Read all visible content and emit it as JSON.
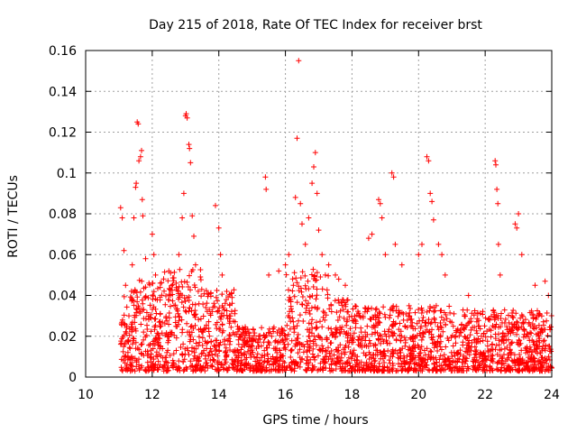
{
  "chart_data": {
    "type": "scatter",
    "title": "Day 215 of 2018, Rate Of TEC Index for receiver brst",
    "xlabel": "GPS time / hours",
    "ylabel": "ROTI / TECUs",
    "xlim": [
      10,
      24
    ],
    "ylim": [
      0,
      0.16
    ],
    "xticks": [
      10,
      12,
      14,
      16,
      18,
      20,
      22,
      24
    ],
    "xtick_labels": [
      "10",
      "12",
      "14",
      "16",
      "18",
      "20",
      "22",
      "24"
    ],
    "yticks": [
      0,
      0.02,
      0.04,
      0.06,
      0.08,
      0.1,
      0.12,
      0.14,
      0.16
    ],
    "ytick_labels": [
      "0",
      "0.02",
      "0.04",
      "0.06",
      "0.08",
      "0.1",
      "0.12",
      "0.14",
      "0.16"
    ],
    "grid": true,
    "marker": "+",
    "color": "#ff0000",
    "series": [
      {
        "name": "ROTI",
        "points": [
          [
            11.05,
            0.083
          ],
          [
            11.1,
            0.078
          ],
          [
            11.15,
            0.062
          ],
          [
            11.2,
            0.045
          ],
          [
            11.3,
            0.03
          ],
          [
            11.4,
            0.055
          ],
          [
            11.45,
            0.078
          ],
          [
            11.55,
            0.125
          ],
          [
            11.58,
            0.124
          ],
          [
            11.5,
            0.093
          ],
          [
            11.52,
            0.095
          ],
          [
            11.6,
            0.106
          ],
          [
            11.65,
            0.108
          ],
          [
            11.68,
            0.111
          ],
          [
            11.7,
            0.087
          ],
          [
            11.72,
            0.079
          ],
          [
            11.8,
            0.058
          ],
          [
            11.9,
            0.046
          ],
          [
            12.0,
            0.07
          ],
          [
            12.05,
            0.06
          ],
          [
            12.1,
            0.05
          ],
          [
            12.5,
            0.052
          ],
          [
            12.55,
            0.051
          ],
          [
            12.8,
            0.06
          ],
          [
            12.9,
            0.078
          ],
          [
            12.95,
            0.09
          ],
          [
            13.0,
            0.128
          ],
          [
            13.02,
            0.129
          ],
          [
            13.05,
            0.127
          ],
          [
            13.1,
            0.114
          ],
          [
            13.12,
            0.112
          ],
          [
            13.15,
            0.105
          ],
          [
            13.2,
            0.079
          ],
          [
            13.25,
            0.069
          ],
          [
            13.3,
            0.055
          ],
          [
            13.9,
            0.084
          ],
          [
            14.0,
            0.073
          ],
          [
            14.05,
            0.06
          ],
          [
            14.1,
            0.05
          ],
          [
            15.4,
            0.098
          ],
          [
            15.42,
            0.092
          ],
          [
            15.5,
            0.05
          ],
          [
            15.8,
            0.052
          ],
          [
            16.0,
            0.055
          ],
          [
            16.1,
            0.06
          ],
          [
            16.3,
            0.088
          ],
          [
            16.35,
            0.117
          ],
          [
            16.4,
            0.155
          ],
          [
            16.45,
            0.085
          ],
          [
            16.5,
            0.075
          ],
          [
            16.6,
            0.065
          ],
          [
            16.7,
            0.078
          ],
          [
            16.8,
            0.095
          ],
          [
            16.85,
            0.103
          ],
          [
            16.9,
            0.11
          ],
          [
            16.95,
            0.09
          ],
          [
            17.0,
            0.072
          ],
          [
            17.1,
            0.06
          ],
          [
            17.2,
            0.05
          ],
          [
            17.3,
            0.055
          ],
          [
            17.5,
            0.05
          ],
          [
            17.6,
            0.048
          ],
          [
            17.8,
            0.045
          ],
          [
            18.5,
            0.068
          ],
          [
            18.6,
            0.07
          ],
          [
            18.8,
            0.087
          ],
          [
            18.85,
            0.085
          ],
          [
            18.9,
            0.078
          ],
          [
            19.0,
            0.06
          ],
          [
            19.2,
            0.1
          ],
          [
            19.25,
            0.098
          ],
          [
            19.3,
            0.065
          ],
          [
            19.5,
            0.055
          ],
          [
            20.0,
            0.06
          ],
          [
            20.1,
            0.065
          ],
          [
            20.25,
            0.108
          ],
          [
            20.3,
            0.106
          ],
          [
            20.35,
            0.09
          ],
          [
            20.4,
            0.086
          ],
          [
            20.45,
            0.077
          ],
          [
            20.6,
            0.065
          ],
          [
            20.7,
            0.06
          ],
          [
            20.8,
            0.05
          ],
          [
            21.5,
            0.04
          ],
          [
            22.3,
            0.106
          ],
          [
            22.32,
            0.104
          ],
          [
            22.35,
            0.092
          ],
          [
            22.38,
            0.085
          ],
          [
            22.4,
            0.065
          ],
          [
            22.45,
            0.05
          ],
          [
            22.9,
            0.075
          ],
          [
            22.95,
            0.073
          ],
          [
            23.0,
            0.08
          ],
          [
            23.1,
            0.06
          ],
          [
            23.5,
            0.045
          ],
          [
            23.8,
            0.047
          ],
          [
            23.9,
            0.04
          ]
        ]
      }
    ]
  }
}
